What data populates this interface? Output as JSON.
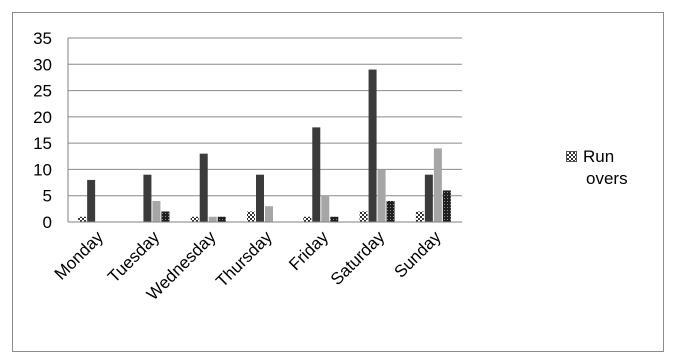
{
  "chart_data": {
    "type": "bar",
    "title": "",
    "xlabel": "",
    "ylabel": "",
    "ylim": [
      0,
      35
    ],
    "yticks": [
      "0",
      "5",
      "10",
      "15",
      "20",
      "25",
      "30",
      "35"
    ],
    "grid": true,
    "legend_position": "right",
    "categories": [
      "Monday",
      "Tuesday",
      "Wednesday",
      "Thursday",
      "Friday",
      "Saturday",
      "Sunday"
    ],
    "series": [
      {
        "name": "Run overs",
        "values": [
          1,
          0,
          1,
          2,
          1,
          2,
          2
        ],
        "color": "#9a9a9a",
        "pattern": "checker"
      },
      {
        "values": [
          8,
          9,
          13,
          9,
          18,
          29,
          9
        ],
        "color": "#3b3b3b"
      },
      {
        "values": [
          0,
          4,
          1,
          3,
          5,
          10,
          14
        ],
        "color": "#a6a6a6"
      },
      {
        "values": [
          0,
          2,
          1,
          0,
          1,
          4,
          6
        ],
        "color": "#262626",
        "pattern": "dots"
      }
    ]
  },
  "legend": {
    "line1": "Run",
    "line2": "overs"
  }
}
